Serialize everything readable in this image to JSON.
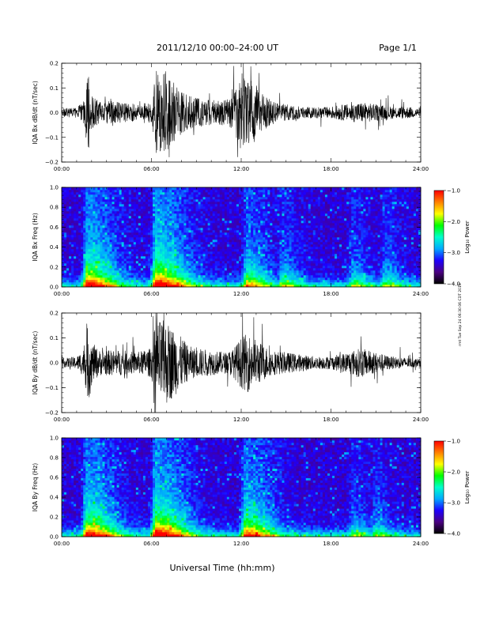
{
  "header": {
    "title": "2011/12/10   00:00–24:00 UT",
    "page": "Page 1/1"
  },
  "footer": {
    "xlabel": "Universal Time (hh:mm)",
    "side_note": "rmt Tue Sep 24 06:30:06 CDT 2019"
  },
  "colorbar": {
    "label": "Log₁₀ Power",
    "ticks": [
      "−1.0",
      "−2.0",
      "−3.0",
      "−4.0"
    ],
    "tick_values": [
      -1.0,
      -2.0,
      -3.0,
      -4.0
    ],
    "range": [
      -4.0,
      -1.0
    ],
    "stops": [
      "#000000",
      "#4b0082",
      "#1e00ff",
      "#00aaff",
      "#00ffcc",
      "#00ff00",
      "#ffff00",
      "#ff8000",
      "#ff0000"
    ]
  },
  "chart_data": [
    {
      "type": "line",
      "id": "bx-dbdt",
      "ylabel": "IQA Bx dB/dt (nT/sec)",
      "xlim": [
        0,
        24
      ],
      "ylim": [
        -0.2,
        0.2
      ],
      "xticks": [
        "00:00",
        "06:00",
        "12:00",
        "18:00",
        "24:00"
      ],
      "yticks": [
        "−0.2",
        "−0.1",
        "0.0",
        "0.1",
        "0.2"
      ],
      "ytick_values": [
        -0.2,
        -0.1,
        0.0,
        0.1,
        0.2
      ],
      "series": [
        {
          "x": [
            0,
            1,
            1.5,
            1.8,
            2,
            2.5,
            3,
            4,
            5,
            6,
            6.3,
            6.6,
            7,
            7.5,
            8,
            8.5,
            9,
            10,
            11,
            11.5,
            12,
            12.4,
            12.8,
            13.2,
            13.6,
            14,
            15,
            16,
            17,
            18,
            19,
            20,
            21,
            22,
            23,
            24
          ],
          "envelope": [
            0.02,
            0.025,
            0.06,
            0.2,
            0.08,
            0.05,
            0.06,
            0.05,
            0.04,
            0.05,
            0.2,
            0.2,
            0.2,
            0.15,
            0.1,
            0.08,
            0.07,
            0.06,
            0.06,
            0.08,
            0.2,
            0.14,
            0.16,
            0.11,
            0.08,
            0.06,
            0.04,
            0.03,
            0.025,
            0.03,
            0.04,
            0.05,
            0.04,
            0.03,
            0.03,
            0.02
          ]
        }
      ]
    },
    {
      "type": "heatmap",
      "id": "bx-spectrogram",
      "ylabel": "IQA Bx Freq (Hz)",
      "xlim": [
        0,
        24
      ],
      "ylim": [
        0.0,
        1.0
      ],
      "xticks": [
        "00:00",
        "06:00",
        "12:00",
        "18:00",
        "24:00"
      ],
      "yticks": [
        "0.0",
        "0.2",
        "0.4",
        "0.6",
        "0.8",
        "1.0"
      ],
      "ytick_values": [
        0.0,
        0.2,
        0.4,
        0.6,
        0.8,
        1.0
      ],
      "events": [
        {
          "t": 1.7,
          "strength": 0.9
        },
        {
          "t": 6.3,
          "strength": 1.0
        },
        {
          "t": 12.4,
          "strength": 0.6
        },
        {
          "t": 14.8,
          "strength": 0.4
        },
        {
          "t": 19.5,
          "strength": 0.35
        },
        {
          "t": 21.6,
          "strength": 0.35
        }
      ]
    },
    {
      "type": "line",
      "id": "by-dbdt",
      "ylabel": "IQA By dB/dt (nT/sec)",
      "xlim": [
        0,
        24
      ],
      "ylim": [
        -0.2,
        0.2
      ],
      "xticks": [
        "00:00",
        "06:00",
        "12:00",
        "18:00",
        "24:00"
      ],
      "yticks": [
        "−0.2",
        "−0.1",
        "0.0",
        "0.1",
        "0.2"
      ],
      "ytick_values": [
        -0.2,
        -0.1,
        0.0,
        0.1,
        0.2
      ],
      "series": [
        {
          "x": [
            0,
            1,
            1.5,
            1.8,
            2,
            2.5,
            3,
            4,
            5,
            6,
            6.3,
            6.6,
            7,
            7.5,
            8,
            8.5,
            9,
            10,
            11,
            11.5,
            12,
            12.4,
            12.8,
            13.2,
            13.6,
            14,
            15,
            16,
            17,
            18,
            19,
            20,
            21,
            22,
            23,
            24
          ],
          "envelope": [
            0.02,
            0.03,
            0.07,
            0.2,
            0.1,
            0.06,
            0.06,
            0.06,
            0.05,
            0.07,
            0.2,
            0.2,
            0.2,
            0.16,
            0.12,
            0.08,
            0.07,
            0.06,
            0.05,
            0.07,
            0.12,
            0.14,
            0.12,
            0.1,
            0.08,
            0.06,
            0.05,
            0.04,
            0.03,
            0.03,
            0.05,
            0.07,
            0.05,
            0.03,
            0.025,
            0.02
          ]
        }
      ]
    },
    {
      "type": "heatmap",
      "id": "by-spectrogram",
      "ylabel": "IQA By Freq (Hz)",
      "xlim": [
        0,
        24
      ],
      "ylim": [
        0.0,
        1.0
      ],
      "xticks": [
        "00:00",
        "06:00",
        "12:00",
        "18:00",
        "24:00"
      ],
      "yticks": [
        "0.0",
        "0.2",
        "0.4",
        "0.6",
        "0.8",
        "1.0"
      ],
      "ytick_values": [
        0.0,
        0.2,
        0.4,
        0.6,
        0.8,
        1.0
      ],
      "events": [
        {
          "t": 1.7,
          "strength": 0.9
        },
        {
          "t": 6.3,
          "strength": 1.0
        },
        {
          "t": 12.3,
          "strength": 0.8
        },
        {
          "t": 13.0,
          "strength": 0.6
        },
        {
          "t": 19.5,
          "strength": 0.3
        },
        {
          "t": 21.0,
          "strength": 0.3
        }
      ]
    }
  ]
}
